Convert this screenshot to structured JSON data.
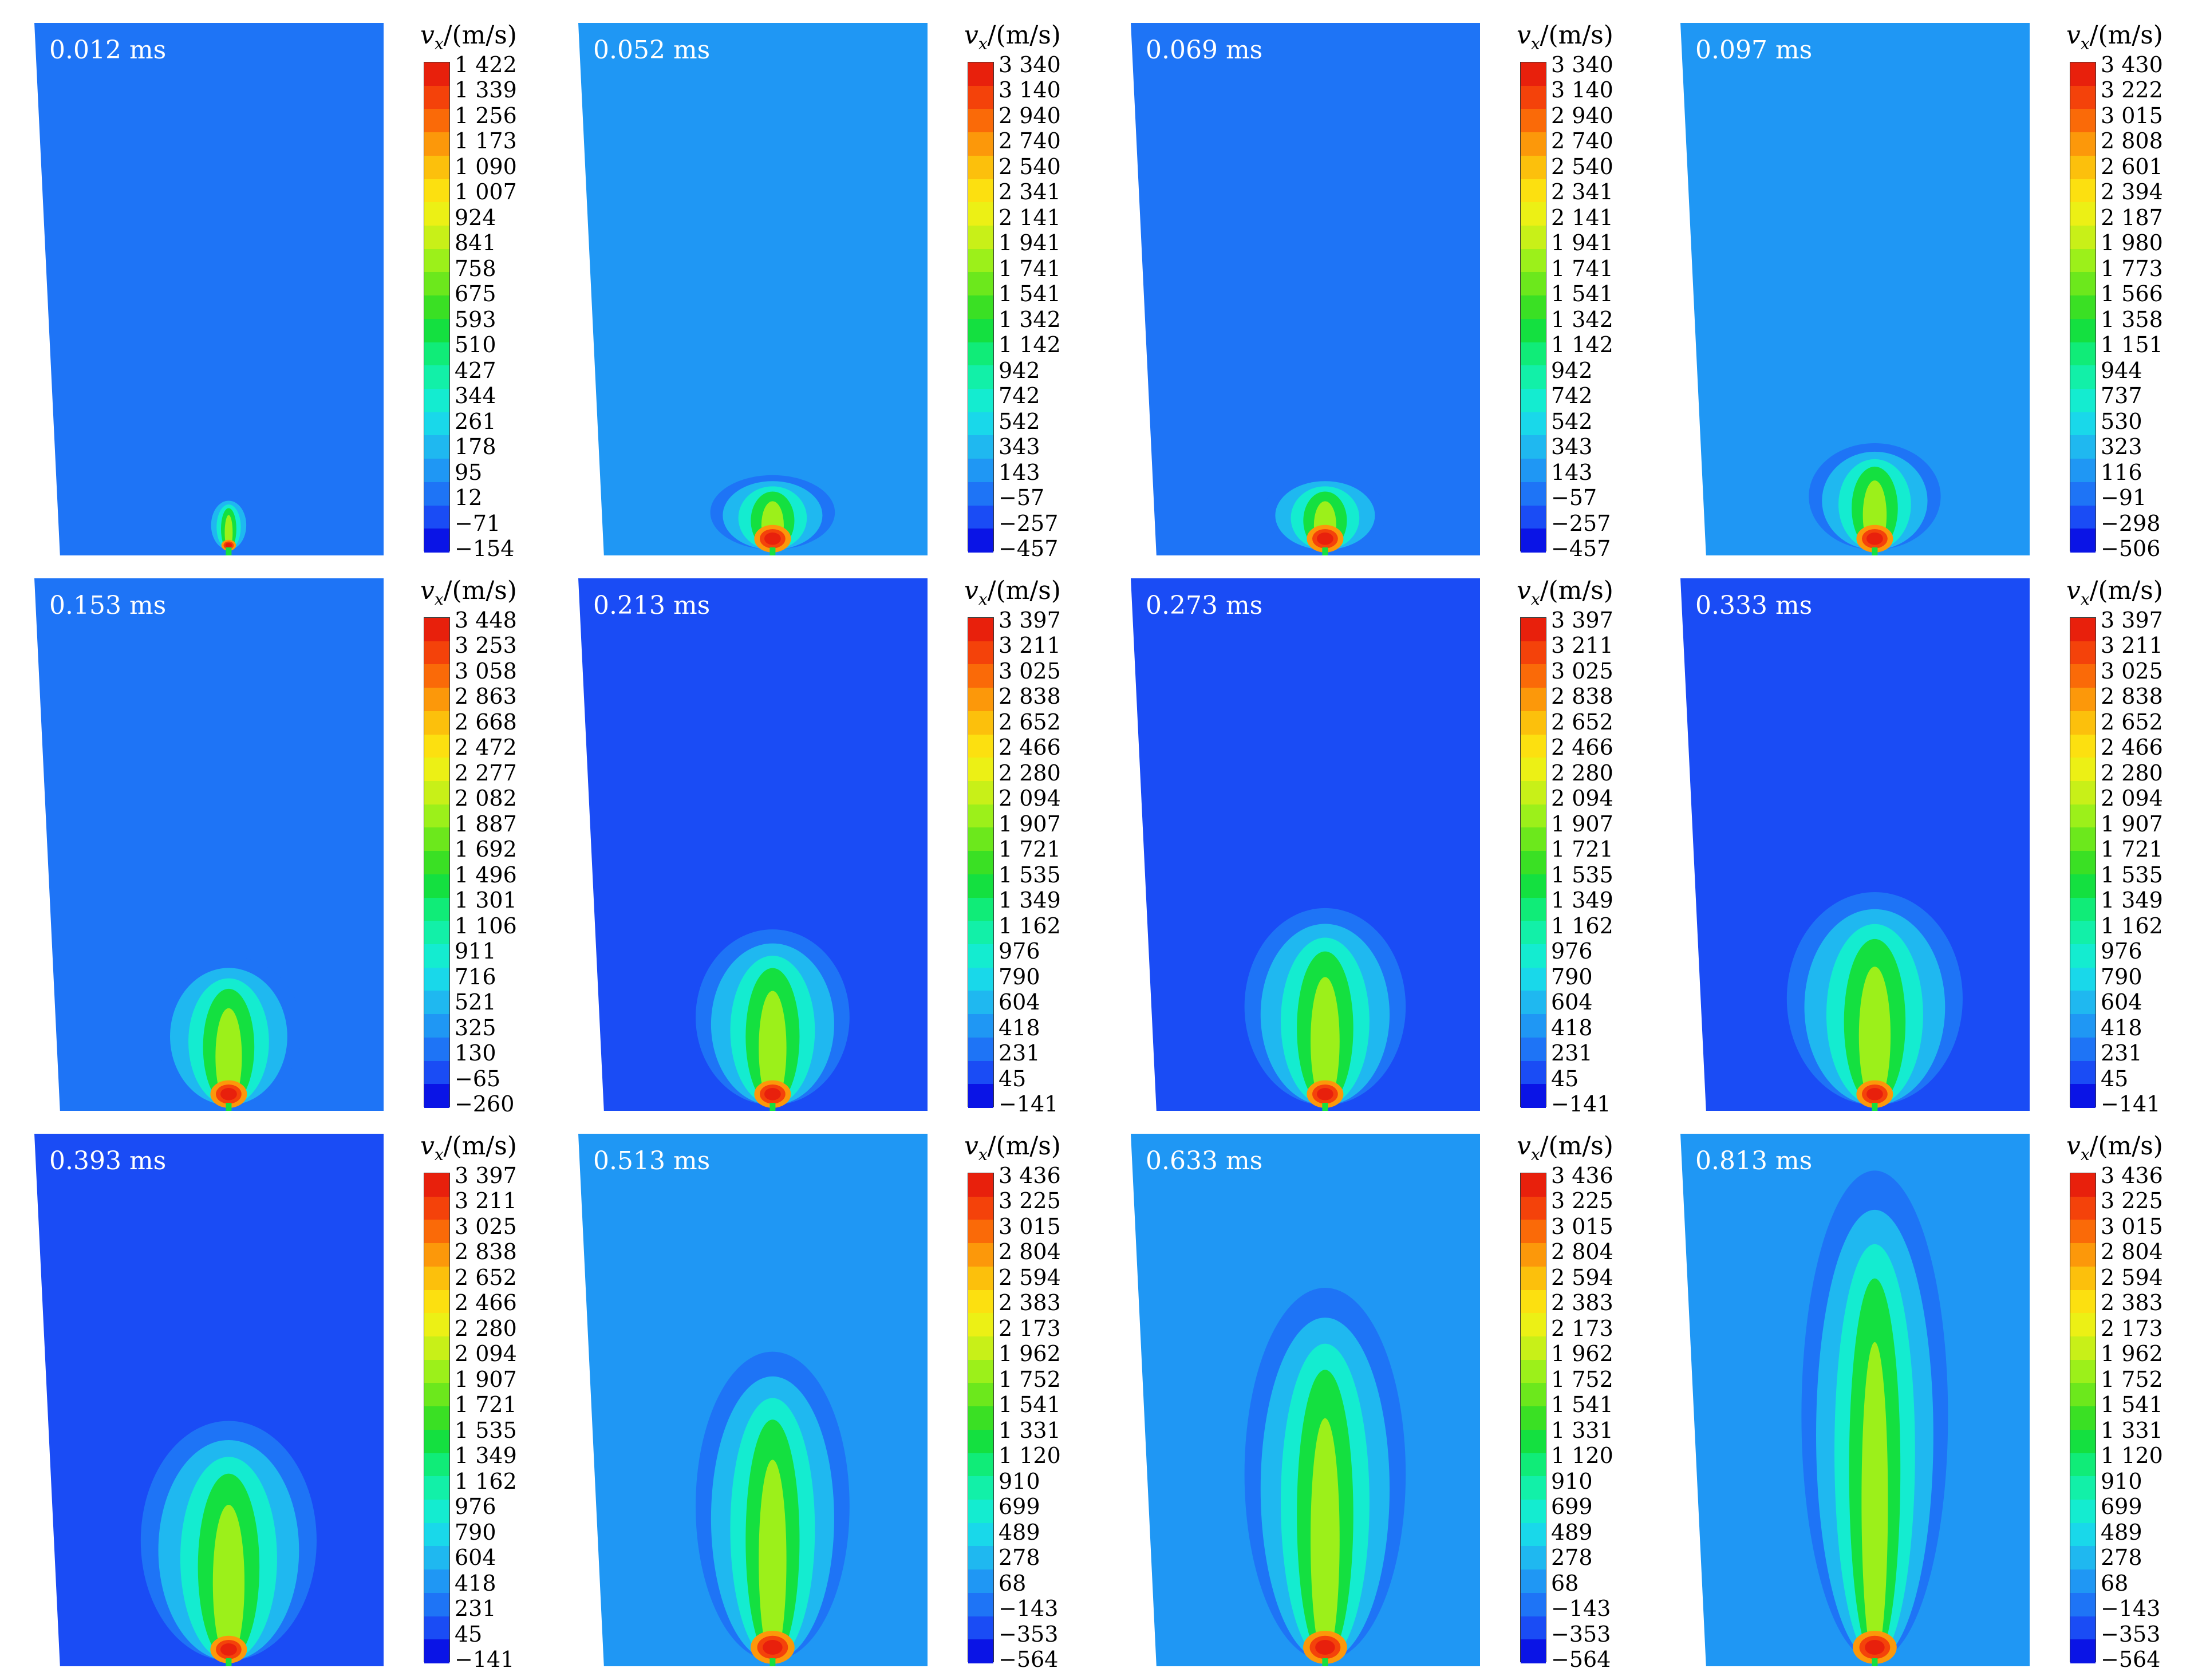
{
  "figure": {
    "background": "#ffffff",
    "colorbar_title": {
      "symbol": "v",
      "subscript": "x",
      "unit": "/(m/s)"
    },
    "colormap": [
      "#0a14e6",
      "#1a4cf5",
      "#1e74f6",
      "#1f97f4",
      "#1fb8f0",
      "#19d8ea",
      "#14ecd0",
      "#12f0a8",
      "#10ec78",
      "#14e040",
      "#3ae024",
      "#6ce81c",
      "#9cf01a",
      "#c8f018",
      "#ecf015",
      "#fce010",
      "#fcc00c",
      "#fc980a",
      "#fa6a08",
      "#f4420a",
      "#e8200c"
    ],
    "panels": [
      {
        "name": "t-0012",
        "time": "0.012 ms",
        "background_color": "#1e74f6",
        "colorbar_ticks": [
          "1 422",
          "1 339",
          "1 256",
          "1 173",
          "1 090",
          "1 007",
          "924",
          "841",
          "758",
          "675",
          "593",
          "510",
          "427",
          "344",
          "261",
          "178",
          "95",
          "12",
          "−71",
          "−154"
        ]
      },
      {
        "name": "t-0052",
        "time": "0.052 ms",
        "background_color": "#1f97f4",
        "colorbar_ticks": [
          "3 340",
          "3 140",
          "2 940",
          "2 740",
          "2 540",
          "2 341",
          "2 141",
          "1 941",
          "1 741",
          "1 541",
          "1 342",
          "1 142",
          "942",
          "742",
          "542",
          "343",
          "143",
          "−57",
          "−257",
          "−457"
        ]
      },
      {
        "name": "t-0069",
        "time": "0.069 ms",
        "background_color": "#1e74f6",
        "colorbar_ticks": [
          "3 340",
          "3 140",
          "2 940",
          "2 740",
          "2 540",
          "2 341",
          "2 141",
          "1 941",
          "1 741",
          "1 541",
          "1 342",
          "1 142",
          "942",
          "742",
          "542",
          "343",
          "143",
          "−57",
          "−257",
          "−457"
        ]
      },
      {
        "name": "t-0097",
        "time": "0.097 ms",
        "background_color": "#1f97f4",
        "colorbar_ticks": [
          "3 430",
          "3 222",
          "3 015",
          "2 808",
          "2 601",
          "2 394",
          "2 187",
          "1 980",
          "1 773",
          "1 566",
          "1 358",
          "1 151",
          "944",
          "737",
          "530",
          "323",
          "116",
          "−91",
          "−298",
          "−506"
        ]
      },
      {
        "name": "t-0153",
        "time": "0.153 ms",
        "background_color": "#1e74f6",
        "colorbar_ticks": [
          "3 448",
          "3 253",
          "3 058",
          "2 863",
          "2 668",
          "2 472",
          "2 277",
          "2 082",
          "1 887",
          "1 692",
          "1 496",
          "1 301",
          "1 106",
          "911",
          "716",
          "521",
          "325",
          "130",
          "−65",
          "−260"
        ]
      },
      {
        "name": "t-0213",
        "time": "0.213 ms",
        "background_color": "#1a4cf5",
        "colorbar_ticks": [
          "3 397",
          "3 211",
          "3 025",
          "2 838",
          "2 652",
          "2 466",
          "2 280",
          "2 094",
          "1 907",
          "1 721",
          "1 535",
          "1 349",
          "1 162",
          "976",
          "790",
          "604",
          "418",
          "231",
          "45",
          "−141"
        ]
      },
      {
        "name": "t-0273",
        "time": "0.273 ms",
        "background_color": "#1a4cf5",
        "colorbar_ticks": [
          "3 397",
          "3 211",
          "3 025",
          "2 838",
          "2 652",
          "2 466",
          "2 280",
          "2 094",
          "1 907",
          "1 721",
          "1 535",
          "1 349",
          "1 162",
          "976",
          "790",
          "604",
          "418",
          "231",
          "45",
          "−141"
        ]
      },
      {
        "name": "t-0333",
        "time": "0.333 ms",
        "background_color": "#1a4cf5",
        "colorbar_ticks": [
          "3 397",
          "3 211",
          "3 025",
          "2 838",
          "2 652",
          "2 466",
          "2 280",
          "2 094",
          "1 907",
          "1 721",
          "1 535",
          "1 349",
          "1 162",
          "976",
          "790",
          "604",
          "418",
          "231",
          "45",
          "−141"
        ]
      },
      {
        "name": "t-0393",
        "time": "0.393 ms",
        "background_color": "#1a4cf5",
        "colorbar_ticks": [
          "3 397",
          "3 211",
          "3 025",
          "2 838",
          "2 652",
          "2 466",
          "2 280",
          "2 094",
          "1 907",
          "1 721",
          "1 535",
          "1 349",
          "1 162",
          "976",
          "790",
          "604",
          "418",
          "231",
          "45",
          "−141"
        ]
      },
      {
        "name": "t-0513",
        "time": "0.513 ms",
        "background_color": "#1f97f4",
        "colorbar_ticks": [
          "3 436",
          "3 225",
          "3 015",
          "2 804",
          "2 594",
          "2 383",
          "2 173",
          "1 962",
          "1 752",
          "1 541",
          "1 331",
          "1 120",
          "910",
          "699",
          "489",
          "278",
          "68",
          "−143",
          "−353",
          "−564"
        ]
      },
      {
        "name": "t-0633",
        "time": "0.633 ms",
        "background_color": "#1f97f4",
        "colorbar_ticks": [
          "3 436",
          "3 225",
          "3 015",
          "2 804",
          "2 594",
          "2 383",
          "2 173",
          "1 962",
          "1 752",
          "1 541",
          "1 331",
          "1 120",
          "910",
          "699",
          "489",
          "278",
          "68",
          "−143",
          "−353",
          "−564"
        ]
      },
      {
        "name": "t-0813",
        "time": "0.813 ms",
        "background_color": "#1f97f4",
        "colorbar_ticks": [
          "3 436",
          "3 225",
          "3 015",
          "2 804",
          "2 594",
          "2 383",
          "2 173",
          "1 962",
          "1 752",
          "1 541",
          "1 331",
          "1 120",
          "910",
          "699",
          "489",
          "278",
          "68",
          "−143",
          "−353",
          "−564"
        ]
      }
    ]
  }
}
